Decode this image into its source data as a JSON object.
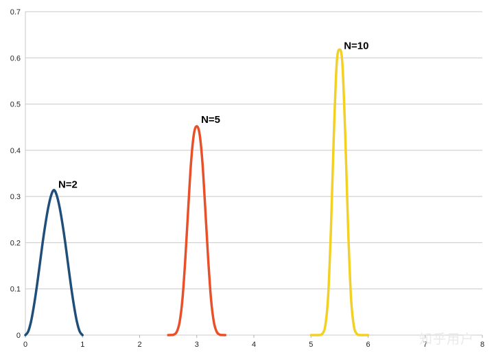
{
  "chart_data": {
    "type": "line",
    "title": "",
    "xlabel": "",
    "ylabel": "",
    "xlim": [
      0,
      8
    ],
    "ylim": [
      0,
      0.7
    ],
    "x_ticks": [
      "0",
      "1",
      "2",
      "3",
      "4",
      "5",
      "6",
      "7",
      "8"
    ],
    "y_ticks": [
      "0",
      "0.1",
      "0.2",
      "0.3",
      "0.4",
      "0.5",
      "0.6",
      "0.7"
    ],
    "grid": "horizontal",
    "legend": "none",
    "series": [
      {
        "name": "N=2",
        "color": "#1f4e79",
        "x": [
          0,
          0.05,
          0.1,
          0.15,
          0.2,
          0.25,
          0.3,
          0.35,
          0.4,
          0.45,
          0.5,
          0.55,
          0.6,
          0.65,
          0.7,
          0.75,
          0.8,
          0.85,
          0.9,
          0.95,
          1.0
        ],
        "y": [
          0,
          0.008,
          0.03,
          0.064,
          0.105,
          0.151,
          0.198,
          0.24,
          0.276,
          0.302,
          0.314,
          0.302,
          0.276,
          0.24,
          0.198,
          0.151,
          0.105,
          0.064,
          0.03,
          0.008,
          0
        ]
      },
      {
        "name": "N=5",
        "color": "#e8502a",
        "x": [
          2.5,
          2.55,
          2.6,
          2.65,
          2.7,
          2.75,
          2.8,
          2.85,
          2.9,
          2.95,
          3.0,
          3.05,
          3.1,
          3.15,
          3.2,
          3.25,
          3.3,
          3.35,
          3.4,
          3.45,
          3.5
        ],
        "y": [
          0,
          0.0001,
          0.001,
          0.007,
          0.028,
          0.078,
          0.165,
          0.272,
          0.373,
          0.435,
          0.452,
          0.435,
          0.373,
          0.272,
          0.165,
          0.078,
          0.028,
          0.007,
          0.001,
          0.0001,
          0
        ]
      },
      {
        "name": "N=10",
        "color": "#f2d024",
        "x": [
          5.0,
          5.05,
          5.1,
          5.15,
          5.2,
          5.25,
          5.3,
          5.35,
          5.4,
          5.45,
          5.5,
          5.55,
          5.6,
          5.65,
          5.7,
          5.75,
          5.8,
          5.85,
          5.9,
          5.95,
          6.0
        ],
        "y": [
          0,
          0,
          0,
          0.0002,
          0.003,
          0.02,
          0.083,
          0.232,
          0.433,
          0.587,
          0.618,
          0.587,
          0.433,
          0.232,
          0.083,
          0.02,
          0.003,
          0.0002,
          0,
          0,
          0
        ]
      }
    ],
    "labels": [
      {
        "text": "N=2",
        "x": 0.6,
        "y": 0.31
      },
      {
        "text": "N=5",
        "x": 3.1,
        "y": 0.45
      },
      {
        "text": "N=10",
        "x": 5.6,
        "y": 0.61
      }
    ]
  },
  "watermark": "知乎用户"
}
